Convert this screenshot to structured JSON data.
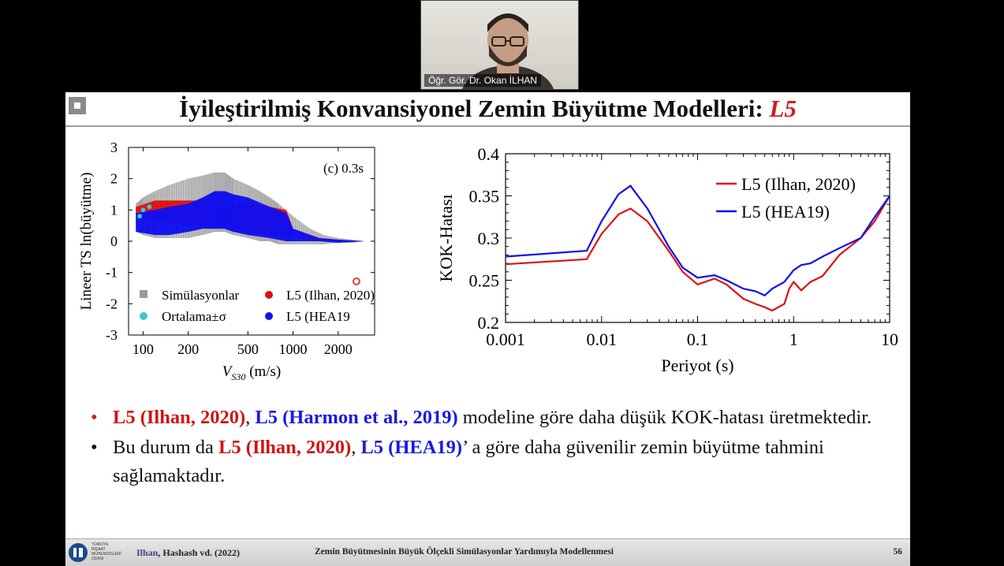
{
  "participant": {
    "name": "Öğr. Gör. Dr. Okan İLHAN"
  },
  "slide": {
    "title_main": "İyileştirilmiş Konvansiyonel Zemin Büyütme Modelleri: ",
    "title_accent": "L5"
  },
  "chart_data": [
    {
      "type": "scatter",
      "annotation": "(c) 0.3s",
      "xlabel": "V",
      "xlabel_sub": "S30",
      "xlabel_unit": " (m/s)",
      "ylabel": "Lineer TS ln(büyütme)",
      "xscale": "log",
      "xlim": [
        80,
        3500
      ],
      "ylim": [
        -3,
        3
      ],
      "xticks": [
        100,
        200,
        500,
        1000,
        2000
      ],
      "xtick_labels": [
        "100",
        "200",
        "500",
        "1000",
        "2000"
      ],
      "yticks": [
        -3,
        -2,
        -1,
        0,
        1,
        2,
        3
      ],
      "ytick_labels": [
        "-3",
        "-2",
        "-1",
        "0",
        "1",
        "2",
        "3"
      ],
      "legend": [
        "Simülasyonlar",
        "Ortalama±σ",
        "L5 (Ilhan, 2020)",
        "L5 (HEA19"
      ],
      "legend_placement": "bottom",
      "colors": {
        "simulations": "#9a9a9a",
        "mean": "#3cc8c8",
        "ilhan": "#e01010",
        "hea19": "#1010f0"
      },
      "series": [
        {
          "name": "Simülasyonlar",
          "x": [
            90,
            100,
            120,
            150,
            200,
            250,
            300,
            350,
            400,
            500,
            600,
            700,
            800,
            1000,
            1300,
            1600,
            2000,
            2500,
            3000,
            3500
          ],
          "y_low": [
            0.3,
            0.2,
            0.1,
            0.1,
            0.1,
            0.2,
            0.3,
            0.3,
            0.2,
            0.1,
            0.0,
            0.0,
            -0.1,
            -0.1,
            -0.1,
            -0.1,
            -0.05,
            -0.05,
            0.0,
            0.0
          ],
          "y_high": [
            1.2,
            1.4,
            1.6,
            1.8,
            2.0,
            2.1,
            2.2,
            2.2,
            2.0,
            1.8,
            1.6,
            1.4,
            1.2,
            0.8,
            0.4,
            0.2,
            0.1,
            0.05,
            0.0,
            0.0
          ]
        },
        {
          "name": "L5 (Ilhan, 2020)",
          "x": [
            90,
            120,
            150,
            200,
            300,
            500,
            700,
            900,
            1000,
            1500,
            2000,
            3000,
            3500
          ],
          "y_low": [
            0.8,
            0.6,
            0.6,
            0.5,
            0.5,
            0.3,
            0.2,
            0.2,
            0.1,
            0.0,
            0.0,
            0.0,
            0.0
          ],
          "y_high": [
            1.1,
            1.3,
            1.3,
            1.3,
            1.3,
            1.2,
            1.1,
            1.0,
            0.4,
            0.1,
            0.05,
            0.0,
            0.0
          ]
        },
        {
          "name": "L5 (HEA19",
          "x": [
            90,
            120,
            150,
            200,
            250,
            300,
            350,
            400,
            500,
            700,
            900,
            1000,
            1500,
            2000,
            3000,
            3500
          ],
          "y_low": [
            0.3,
            0.2,
            0.2,
            0.3,
            0.4,
            0.4,
            0.4,
            0.3,
            0.2,
            0.1,
            0.0,
            0.0,
            0.0,
            -0.05,
            0.0,
            0.0
          ],
          "y_high": [
            0.9,
            1.0,
            1.1,
            1.2,
            1.4,
            1.6,
            1.6,
            1.5,
            1.4,
            1.1,
            0.9,
            0.4,
            0.1,
            0.05,
            0.0,
            0.0
          ]
        }
      ]
    },
    {
      "type": "line",
      "xlabel": "Periyot (s)",
      "ylabel": "KOK-Hatası",
      "xscale": "log",
      "xlim": [
        0.001,
        10
      ],
      "ylim": [
        0.2,
        0.4
      ],
      "xticks": [
        0.001,
        0.01,
        0.1,
        1,
        10
      ],
      "xtick_labels": [
        "0.001",
        "0.01",
        "0.1",
        "1",
        "10"
      ],
      "yticks": [
        0.2,
        0.25,
        0.3,
        0.35,
        0.4
      ],
      "ytick_labels": [
        "0.2",
        "0.25",
        "0.3",
        "0.35",
        "0.4"
      ],
      "legend_placement": "top-right",
      "series": [
        {
          "name": "L5 (Ilhan, 2020)",
          "color": "#e01010",
          "x": [
            0.001,
            0.007,
            0.01,
            0.015,
            0.02,
            0.03,
            0.05,
            0.07,
            0.1,
            0.15,
            0.2,
            0.3,
            0.4,
            0.5,
            0.6,
            0.8,
            0.9,
            1.0,
            1.2,
            1.5,
            2,
            3,
            5,
            7,
            10
          ],
          "y": [
            0.269,
            0.275,
            0.305,
            0.328,
            0.335,
            0.32,
            0.285,
            0.26,
            0.245,
            0.252,
            0.245,
            0.228,
            0.222,
            0.218,
            0.214,
            0.222,
            0.24,
            0.248,
            0.238,
            0.248,
            0.255,
            0.28,
            0.3,
            0.32,
            0.35
          ]
        },
        {
          "name": "L5 (HEA19)",
          "color": "#1010f0",
          "x": [
            0.001,
            0.007,
            0.01,
            0.015,
            0.02,
            0.03,
            0.05,
            0.07,
            0.1,
            0.15,
            0.2,
            0.3,
            0.4,
            0.5,
            0.6,
            0.8,
            1.0,
            1.2,
            1.5,
            2,
            3,
            5,
            7,
            10
          ],
          "y": [
            0.278,
            0.285,
            0.32,
            0.352,
            0.362,
            0.335,
            0.29,
            0.265,
            0.253,
            0.256,
            0.25,
            0.24,
            0.237,
            0.232,
            0.24,
            0.248,
            0.262,
            0.268,
            0.27,
            0.278,
            0.288,
            0.3,
            0.325,
            0.35
          ]
        }
      ]
    }
  ],
  "bullets": [
    {
      "parts": [
        {
          "t": "L5 (Ilhan, 2020)",
          "c": "r"
        },
        {
          "t": ", ",
          "c": ""
        },
        {
          "t": "L5 (Harmon et al., 2019)",
          "c": "b"
        },
        {
          "t": " modeline göre daha düşük KOK-hatası üretmektedir.",
          "c": ""
        }
      ]
    },
    {
      "parts": [
        {
          "t": "Bu durum da ",
          "c": ""
        },
        {
          "t": "L5 (Ilhan, 2020)",
          "c": "r"
        },
        {
          "t": ", ",
          "c": ""
        },
        {
          "t": "L5 (HEA19)",
          "c": "b"
        },
        {
          "t": "’ a göre daha güvenilir zemin büyütme tahmini sağlamaktadır.",
          "c": ""
        }
      ]
    }
  ],
  "footer": {
    "org": "TÜRKİYE İNŞAAT MÜHENDİSLERİ ODASI",
    "author_first": "Ilhan",
    "author_rest": ", Hashash vd. (2022)",
    "subtitle": "Zemin Büyütmesinin Büyük Ölçekli Simülasyonlar Yardımıyla Modellenmesi",
    "page": "56"
  }
}
